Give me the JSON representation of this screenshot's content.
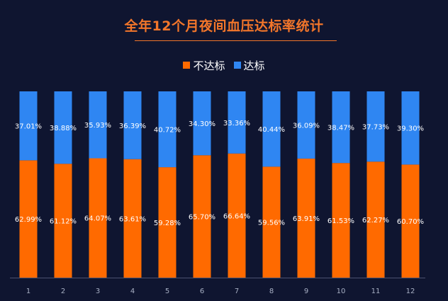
{
  "chart_data": {
    "type": "bar",
    "stacked": true,
    "title": "全年12个月夜间血压达标率统计",
    "categories": [
      "1",
      "2",
      "3",
      "4",
      "5",
      "6",
      "7",
      "8",
      "9",
      "10",
      "11",
      "12"
    ],
    "series": [
      {
        "name": "不达标",
        "color": "#ff6a00",
        "values": [
          62.99,
          61.12,
          64.07,
          63.61,
          59.28,
          65.7,
          66.64,
          59.56,
          63.91,
          61.53,
          62.27,
          60.7
        ],
        "labels": [
          "62.99%",
          "61.12%",
          "64.07%",
          "63.61%",
          "59.28%",
          "65.70%",
          "66.64%",
          "59.56%",
          "63.91%",
          "61.53%",
          "62.27%",
          "60.70%"
        ]
      },
      {
        "name": "达标",
        "color": "#2f86f2",
        "values": [
          37.01,
          38.88,
          35.93,
          36.39,
          40.72,
          34.3,
          33.36,
          40.44,
          36.09,
          38.47,
          37.73,
          39.3
        ],
        "labels": [
          "37.01%",
          "38.88%",
          "35.93%",
          "36.39%",
          "40.72%",
          "34.30%",
          "33.36%",
          "40.44%",
          "36.09%",
          "38.47%",
          "37.73%",
          "39.30%"
        ]
      }
    ],
    "ylim": [
      0,
      100
    ],
    "legend_position": "top-center",
    "grid": false
  }
}
